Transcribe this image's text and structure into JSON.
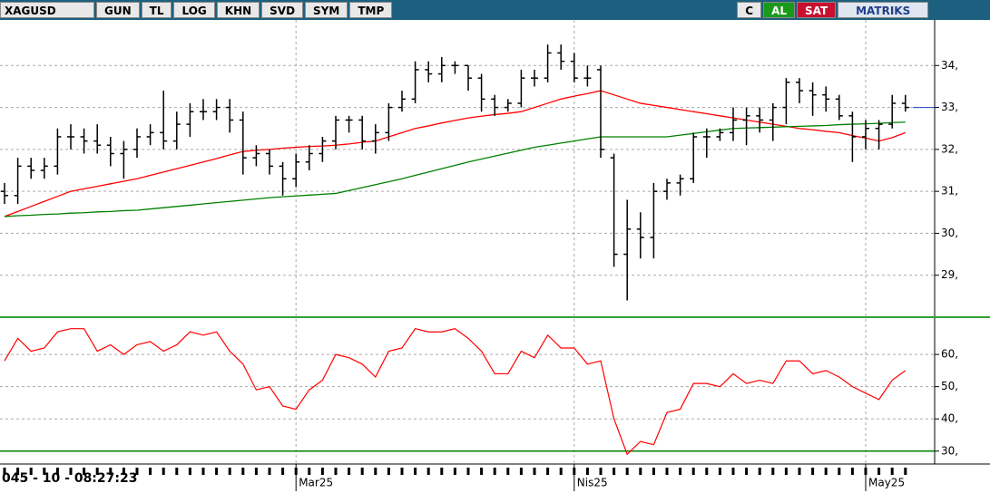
{
  "toolbar": {
    "symbol": "XAGUSD",
    "buttons": [
      "GUN",
      "TL",
      "LOG",
      "KHN",
      "SVD",
      "SYM",
      "TMP"
    ],
    "c": "C",
    "buy": "AL",
    "sell": "SAT",
    "brand": "MATRIKS"
  },
  "status": {
    "clock": "045 - 10 - 08:27:23"
  },
  "chart_data": [
    {
      "type": "ohlc",
      "color": "#000000",
      "categories": [
        null,
        null,
        null,
        null,
        null,
        null,
        null,
        null,
        null,
        null,
        null,
        null,
        null,
        null,
        null,
        null,
        null,
        null,
        null,
        null,
        null,
        null,
        "Mar25",
        null,
        null,
        null,
        null,
        null,
        null,
        null,
        null,
        null,
        null,
        null,
        null,
        null,
        null,
        null,
        null,
        null,
        null,
        null,
        null,
        "Nis25",
        null,
        null,
        null,
        null,
        null,
        null,
        null,
        null,
        null,
        null,
        null,
        null,
        null,
        null,
        null,
        null,
        null,
        null,
        null,
        null,
        null,
        "May25",
        null,
        null,
        null
      ],
      "open": [
        31.0,
        30.9,
        31.6,
        31.5,
        31.6,
        32.3,
        32.3,
        32.2,
        32.1,
        31.9,
        32.0,
        32.3,
        32.4,
        32.2,
        32.6,
        32.9,
        32.9,
        33.0,
        32.7,
        31.8,
        31.9,
        31.6,
        31.3,
        31.7,
        31.9,
        32.2,
        32.7,
        32.7,
        32.2,
        32.4,
        33.0,
        33.2,
        33.9,
        33.8,
        34.0,
        34.0,
        33.7,
        33.2,
        33.0,
        33.1,
        33.7,
        33.7,
        34.3,
        34.1,
        33.7,
        33.9,
        31.8,
        29.5,
        30.1,
        29.9,
        31.0,
        31.2,
        31.3,
        32.3,
        32.3,
        32.4,
        32.7,
        32.8,
        32.7,
        33.0,
        33.6,
        33.4,
        33.3,
        33.2,
        32.8,
        32.3,
        32.5,
        32.6,
        33.1
      ],
      "high": [
        31.2,
        31.8,
        31.8,
        31.8,
        32.5,
        32.6,
        32.5,
        32.6,
        32.3,
        32.2,
        32.5,
        32.6,
        33.4,
        32.9,
        33.1,
        33.2,
        33.2,
        33.2,
        32.9,
        32.1,
        32.0,
        31.7,
        31.9,
        32.1,
        32.3,
        32.8,
        32.8,
        32.8,
        32.6,
        33.1,
        33.4,
        34.1,
        34.1,
        34.2,
        34.1,
        34.0,
        33.8,
        33.3,
        33.2,
        33.9,
        33.9,
        34.5,
        34.5,
        34.3,
        34.0,
        34.0,
        31.9,
        30.8,
        30.5,
        31.2,
        31.3,
        31.4,
        32.4,
        32.5,
        32.5,
        33.0,
        33.0,
        33.0,
        33.1,
        33.7,
        33.7,
        33.6,
        33.5,
        33.3,
        32.9,
        32.7,
        32.7,
        33.3,
        33.3
      ],
      "low": [
        30.7,
        30.7,
        31.3,
        31.3,
        31.4,
        32.0,
        31.9,
        31.9,
        31.6,
        31.3,
        31.8,
        32.1,
        32.0,
        32.0,
        32.3,
        32.7,
        32.7,
        32.4,
        31.4,
        31.6,
        31.4,
        30.9,
        31.1,
        31.5,
        31.7,
        32.0,
        32.4,
        32.0,
        31.9,
        32.2,
        32.9,
        33.1,
        33.6,
        33.6,
        33.8,
        33.4,
        32.9,
        32.8,
        32.9,
        33.0,
        33.5,
        33.6,
        33.9,
        33.6,
        33.5,
        31.8,
        29.2,
        28.4,
        29.4,
        29.4,
        30.8,
        30.9,
        31.2,
        31.8,
        32.2,
        32.2,
        32.1,
        32.4,
        32.2,
        32.6,
        33.1,
        32.8,
        32.9,
        32.7,
        31.7,
        32.0,
        32.0,
        32.5,
        32.9
      ],
      "close": [
        30.9,
        31.6,
        31.5,
        31.6,
        32.3,
        32.3,
        32.2,
        32.1,
        31.9,
        32.0,
        32.3,
        32.4,
        32.2,
        32.6,
        32.9,
        32.9,
        33.0,
        32.7,
        31.8,
        31.9,
        31.6,
        31.3,
        31.7,
        31.9,
        32.2,
        32.7,
        32.7,
        32.2,
        32.4,
        33.0,
        33.2,
        33.9,
        33.8,
        34.0,
        34.0,
        33.7,
        33.2,
        33.0,
        33.1,
        33.7,
        33.7,
        34.3,
        34.1,
        33.7,
        33.7,
        32.0,
        29.5,
        30.1,
        29.9,
        31.0,
        31.2,
        31.3,
        32.3,
        32.3,
        32.4,
        32.7,
        32.8,
        32.7,
        33.0,
        33.6,
        33.4,
        33.3,
        33.2,
        32.8,
        32.3,
        32.5,
        32.6,
        33.1,
        33.0
      ],
      "lines": [
        {
          "color": "#ff0000",
          "values": [
            30.4,
            30.52,
            30.64,
            30.76,
            30.88,
            31.0,
            31.06,
            31.12,
            31.18,
            31.24,
            31.3,
            31.38,
            31.46,
            31.54,
            31.62,
            31.7,
            31.78,
            31.87,
            31.95,
            31.98,
            32.0,
            32.03,
            32.05,
            32.07,
            32.08,
            32.1,
            32.13,
            32.17,
            32.2,
            32.3,
            32.4,
            32.5,
            32.56,
            32.63,
            32.69,
            32.75,
            32.79,
            32.83,
            32.86,
            32.9,
            33.0,
            33.1,
            33.2,
            33.27,
            33.33,
            33.4,
            33.3,
            33.2,
            33.1,
            33.05,
            33.0,
            32.95,
            32.9,
            32.85,
            32.8,
            32.75,
            32.7,
            32.65,
            32.6,
            32.55,
            32.5,
            32.47,
            32.43,
            32.4,
            32.33,
            32.27,
            32.2,
            32.28,
            32.4
          ]
        },
        {
          "color": "#008000",
          "values": [
            30.4,
            30.42,
            30.43,
            30.45,
            30.46,
            30.48,
            30.49,
            30.51,
            30.52,
            30.54,
            30.55,
            30.58,
            30.61,
            30.64,
            30.67,
            30.7,
            30.73,
            30.76,
            30.79,
            30.82,
            30.85,
            30.87,
            30.89,
            30.91,
            30.93,
            30.95,
            31.02,
            31.09,
            31.16,
            31.23,
            31.3,
            31.38,
            31.46,
            31.54,
            31.62,
            31.7,
            31.77,
            31.84,
            31.91,
            31.98,
            32.05,
            32.1,
            32.15,
            32.2,
            32.25,
            32.3,
            32.3,
            32.3,
            32.3,
            32.3,
            32.3,
            32.34,
            32.38,
            32.42,
            32.46,
            32.5,
            32.51,
            32.52,
            32.53,
            32.54,
            32.55,
            32.56,
            32.57,
            32.59,
            32.6,
            32.61,
            32.62,
            32.64,
            32.65
          ]
        }
      ],
      "ylim": [
        28,
        35
      ],
      "yticks": [
        {
          "value": 29,
          "label": "29,"
        },
        {
          "value": 30,
          "label": "30,"
        },
        {
          "value": 31,
          "label": "31,"
        },
        {
          "value": 32,
          "label": "32,"
        },
        {
          "value": 33,
          "label": "33,"
        },
        {
          "value": 34,
          "label": "34,"
        }
      ],
      "grid": true
    },
    {
      "type": "line",
      "color": "#ff0000",
      "values": [
        58,
        65,
        61,
        62,
        67,
        68,
        68,
        61,
        63,
        60,
        63,
        64,
        61,
        63,
        67,
        66,
        67,
        61,
        57,
        49,
        50,
        44,
        43,
        49,
        52,
        60,
        59,
        57,
        53,
        61,
        62,
        68,
        67,
        67,
        68,
        65,
        61,
        54,
        54,
        61,
        59,
        66,
        62,
        62,
        57,
        58,
        40,
        29,
        33,
        32,
        42,
        43,
        51,
        51,
        50,
        54,
        51,
        52,
        51,
        58,
        58,
        54,
        55,
        53,
        50,
        48,
        46,
        52,
        55
      ],
      "level": 30,
      "level_color": "#008000",
      "ylim": [
        26,
        71
      ],
      "yticks": [
        {
          "value": 30,
          "label": "30,"
        },
        {
          "value": 40,
          "label": "40,"
        },
        {
          "value": 50,
          "label": "50,"
        },
        {
          "value": 60,
          "label": "60,"
        }
      ],
      "grid": true
    }
  ]
}
